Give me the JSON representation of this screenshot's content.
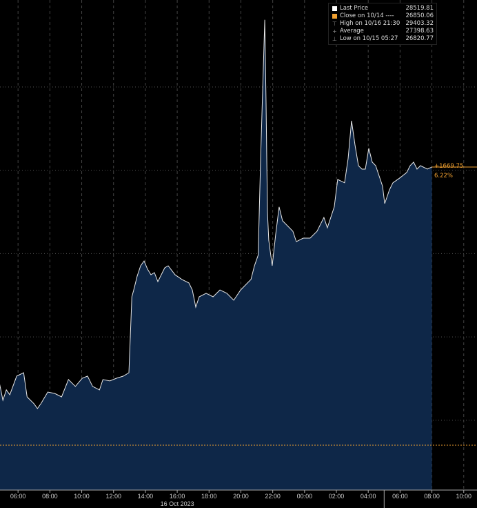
{
  "chart_data": {
    "type": "area",
    "title": "",
    "xlabel": "",
    "ylabel": "",
    "xlim": [
      "2023-10-16T04:52",
      "2023-10-17T10:50"
    ],
    "ylim": [
      26581,
      29522
    ],
    "grid": true,
    "x_ticks": [
      "06:00",
      "08:00",
      "10:00",
      "12:00",
      "14:00",
      "16:00",
      "18:00",
      "20:00",
      "22:00",
      "00:00",
      "02:00",
      "04:00",
      "06:00",
      "08:00",
      "10:00"
    ],
    "x_tick_times": [
      "2023-10-16T06:00",
      "2023-10-16T08:00",
      "2023-10-16T10:00",
      "2023-10-16T12:00",
      "2023-10-16T14:00",
      "2023-10-16T16:00",
      "2023-10-16T18:00",
      "2023-10-16T20:00",
      "2023-10-16T22:00",
      "2023-10-17T00:00",
      "2023-10-17T02:00",
      "2023-10-17T04:00",
      "2023-10-17T06:00",
      "2023-10-17T08:00",
      "2023-10-17T10:00"
    ],
    "date_label": "16 Oct 2023",
    "y_gridlines": [
      27000,
      27500,
      28000,
      28500,
      29000
    ],
    "legend_position": "top-right",
    "legend": [
      {
        "label": "Last Price",
        "value": "28519.81",
        "icon": "white-square"
      },
      {
        "label": "Close on 10/14 ----",
        "value": "26850.06",
        "icon": "orange-square"
      },
      {
        "label": "High on 10/16 21:30",
        "value": "29403.32",
        "icon": "high-marker"
      },
      {
        "label": "Average",
        "value": "27398.63",
        "icon": "average-marker"
      },
      {
        "label": "Low on 10/15 05:27",
        "value": "26820.77",
        "icon": "low-marker"
      }
    ],
    "close_value": 26850.06,
    "last_value": 28519.81,
    "change_label": "+1669.75",
    "change_pct_label": "6.22%",
    "colors": {
      "line": "#e8e8e8",
      "fill": "#0e2748",
      "close": "#f0a030",
      "grid": "#555555"
    },
    "series": [
      {
        "points": [
          [
            "2023-10-16T04:50",
            27223
          ],
          [
            "2023-10-16T05:03",
            27120
          ],
          [
            "2023-10-16T05:16",
            27182
          ],
          [
            "2023-10-16T05:29",
            27153
          ],
          [
            "2023-10-16T05:55",
            27265
          ],
          [
            "2023-10-16T06:21",
            27285
          ],
          [
            "2023-10-16T06:34",
            27140
          ],
          [
            "2023-10-16T07:00",
            27099
          ],
          [
            "2023-10-16T07:13",
            27070
          ],
          [
            "2023-10-16T07:26",
            27099
          ],
          [
            "2023-10-16T07:52",
            27169
          ],
          [
            "2023-10-16T08:18",
            27161
          ],
          [
            "2023-10-16T08:44",
            27140
          ],
          [
            "2023-10-16T09:10",
            27244
          ],
          [
            "2023-10-16T09:36",
            27203
          ],
          [
            "2023-10-16T10:02",
            27252
          ],
          [
            "2023-10-16T10:22",
            27265
          ],
          [
            "2023-10-16T10:41",
            27203
          ],
          [
            "2023-10-16T11:07",
            27182
          ],
          [
            "2023-10-16T11:20",
            27244
          ],
          [
            "2023-10-16T11:46",
            27236
          ],
          [
            "2023-10-16T12:11",
            27252
          ],
          [
            "2023-10-16T12:37",
            27265
          ],
          [
            "2023-10-16T12:58",
            27285
          ],
          [
            "2023-10-16T13:09",
            27741
          ],
          [
            "2023-10-16T13:16",
            27782
          ],
          [
            "2023-10-16T13:29",
            27865
          ],
          [
            "2023-10-16T13:42",
            27927
          ],
          [
            "2023-10-16T13:55",
            27956
          ],
          [
            "2023-10-16T14:08",
            27907
          ],
          [
            "2023-10-16T14:21",
            27873
          ],
          [
            "2023-10-16T14:34",
            27886
          ],
          [
            "2023-10-16T14:47",
            27832
          ],
          [
            "2023-10-16T15:13",
            27915
          ],
          [
            "2023-10-16T15:26",
            27927
          ],
          [
            "2023-10-16T15:52",
            27873
          ],
          [
            "2023-10-16T16:18",
            27845
          ],
          [
            "2023-10-16T16:44",
            27824
          ],
          [
            "2023-10-16T16:57",
            27782
          ],
          [
            "2023-10-16T17:10",
            27679
          ],
          [
            "2023-10-16T17:23",
            27741
          ],
          [
            "2023-10-16T17:49",
            27762
          ],
          [
            "2023-10-16T18:15",
            27741
          ],
          [
            "2023-10-16T18:41",
            27782
          ],
          [
            "2023-10-16T19:07",
            27762
          ],
          [
            "2023-10-16T19:33",
            27720
          ],
          [
            "2023-10-16T19:59",
            27782
          ],
          [
            "2023-10-16T20:25",
            27824
          ],
          [
            "2023-10-16T20:38",
            27845
          ],
          [
            "2023-10-16T20:51",
            27927
          ],
          [
            "2023-10-16T21:05",
            27990
          ],
          [
            "2023-10-16T21:15",
            28600
          ],
          [
            "2023-10-16T21:30",
            29403.32
          ],
          [
            "2023-10-16T21:35",
            28900
          ],
          [
            "2023-10-16T21:40",
            28250
          ],
          [
            "2023-10-16T21:45",
            28080
          ],
          [
            "2023-10-16T21:58",
            27927
          ],
          [
            "2023-10-16T22:11",
            28114
          ],
          [
            "2023-10-16T22:24",
            28280
          ],
          [
            "2023-10-16T22:37",
            28197
          ],
          [
            "2023-10-16T23:03",
            28155
          ],
          [
            "2023-10-16T23:16",
            28134
          ],
          [
            "2023-10-16T23:29",
            28072
          ],
          [
            "2023-10-16T23:55",
            28093
          ],
          [
            "2023-10-17T00:21",
            28093
          ],
          [
            "2023-10-17T00:47",
            28134
          ],
          [
            "2023-10-17T01:13",
            28217
          ],
          [
            "2023-10-17T01:26",
            28155
          ],
          [
            "2023-10-17T01:52",
            28280
          ],
          [
            "2023-10-17T02:05",
            28445
          ],
          [
            "2023-10-17T02:31",
            28425
          ],
          [
            "2023-10-17T02:44",
            28570
          ],
          [
            "2023-10-17T02:57",
            28797
          ],
          [
            "2023-10-17T03:10",
            28652
          ],
          [
            "2023-10-17T03:23",
            28528
          ],
          [
            "2023-10-17T03:36",
            28507
          ],
          [
            "2023-10-17T03:49",
            28507
          ],
          [
            "2023-10-17T04:02",
            28632
          ],
          [
            "2023-10-17T04:15",
            28549
          ],
          [
            "2023-10-17T04:28",
            28528
          ],
          [
            "2023-10-17T04:41",
            28466
          ],
          [
            "2023-10-17T04:54",
            28404
          ],
          [
            "2023-10-17T05:02",
            28300
          ],
          [
            "2023-10-17T05:20",
            28383
          ],
          [
            "2023-10-17T05:33",
            28425
          ],
          [
            "2023-10-17T05:59",
            28454
          ],
          [
            "2023-10-17T06:25",
            28487
          ],
          [
            "2023-10-17T06:38",
            28528
          ],
          [
            "2023-10-17T06:51",
            28549
          ],
          [
            "2023-10-17T07:04",
            28507
          ],
          [
            "2023-10-17T07:17",
            28528
          ],
          [
            "2023-10-17T07:43",
            28507
          ],
          [
            "2023-10-17T08:00",
            28519.81
          ]
        ]
      }
    ]
  }
}
